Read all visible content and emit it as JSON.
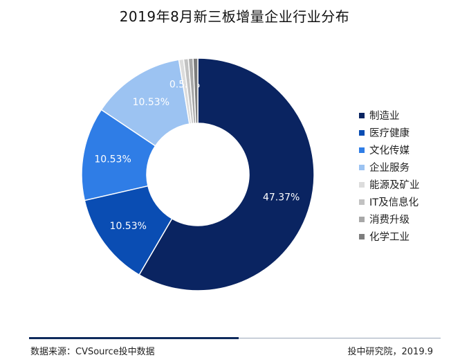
{
  "chart_data": {
    "type": "pie",
    "title": "2019年8月新三板增量企业行业分布",
    "categories": [
      "制造业",
      "医疗健康",
      "文化传媒",
      "企业服务",
      "能源及矿业",
      "IT及信息化",
      "消费升级",
      "化学工业"
    ],
    "values": [
      47.37,
      10.53,
      10.53,
      10.53,
      0.53,
      0.53,
      0.53,
      0.53
    ],
    "labels": [
      "47.37%",
      "10.53%",
      "10.53%",
      "10.53%",
      "0.53%",
      "",
      "",
      ""
    ],
    "colors": [
      "#0a2461",
      "#0a4db3",
      "#2f7de6",
      "#9cc3f2",
      "#dcdcdc",
      "#c2c2c2",
      "#a8a8a8",
      "#7d7d7d"
    ],
    "donut": true,
    "legend_position": "right"
  },
  "footer": {
    "source": "数据来源：CVSource投中数据",
    "credit": "投中研究院，2019.9"
  }
}
